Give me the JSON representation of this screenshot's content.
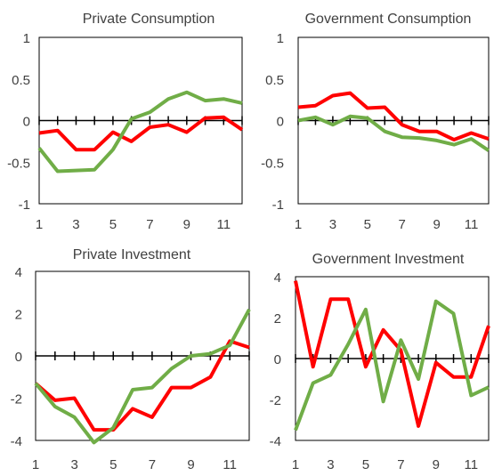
{
  "chart_data": [
    {
      "type": "line",
      "title": "Private Consumption",
      "x": [
        1,
        2,
        3,
        4,
        5,
        6,
        7,
        8,
        9,
        10,
        11,
        12
      ],
      "xticks": [
        1,
        3,
        5,
        7,
        9,
        11
      ],
      "yticks": [
        1,
        0.5,
        0,
        -0.5,
        -1
      ],
      "ylim": [
        -1,
        1
      ],
      "series": [
        {
          "color": "#ff0000",
          "values": [
            -0.15,
            -0.12,
            -0.35,
            -0.35,
            -0.14,
            -0.25,
            -0.08,
            -0.05,
            -0.14,
            0.03,
            0.04,
            -0.11
          ]
        },
        {
          "color": "#70ad47",
          "values": [
            -0.33,
            -0.61,
            -0.6,
            -0.59,
            -0.35,
            0.02,
            0.1,
            0.26,
            0.34,
            0.24,
            0.26,
            0.21
          ]
        }
      ]
    },
    {
      "type": "line",
      "title": "Government Consumption",
      "x": [
        1,
        2,
        3,
        4,
        5,
        6,
        7,
        8,
        9,
        10,
        11,
        12
      ],
      "xticks": [
        1,
        3,
        5,
        7,
        9,
        11
      ],
      "yticks": [
        1,
        0.5,
        0,
        -0.5,
        -1
      ],
      "ylim": [
        -1,
        1
      ],
      "series": [
        {
          "color": "#ff0000",
          "values": [
            0.16,
            0.18,
            0.3,
            0.33,
            0.15,
            0.16,
            -0.05,
            -0.13,
            -0.13,
            -0.23,
            -0.15,
            -0.22
          ]
        },
        {
          "color": "#70ad47",
          "values": [
            0.0,
            0.04,
            -0.05,
            0.05,
            0.03,
            -0.13,
            -0.2,
            -0.21,
            -0.24,
            -0.29,
            -0.22,
            -0.36
          ]
        }
      ]
    },
    {
      "type": "line",
      "title": "Private Investment",
      "x": [
        1,
        2,
        3,
        4,
        5,
        6,
        7,
        8,
        9,
        10,
        11,
        12
      ],
      "xticks": [
        1,
        3,
        5,
        7,
        9,
        11
      ],
      "yticks": [
        4,
        2,
        0,
        -2,
        -4
      ],
      "ylim": [
        -4,
        4
      ],
      "series": [
        {
          "color": "#ff0000",
          "values": [
            -1.3,
            -2.1,
            -2.0,
            -3.5,
            -3.5,
            -2.5,
            -2.9,
            -1.5,
            -1.5,
            -1.0,
            0.7,
            0.4
          ]
        },
        {
          "color": "#70ad47",
          "values": [
            -1.3,
            -2.4,
            -2.9,
            -4.1,
            -3.4,
            -1.6,
            -1.5,
            -0.6,
            0.0,
            0.1,
            0.5,
            2.2
          ]
        }
      ]
    },
    {
      "type": "line",
      "title": "Government Investment",
      "x": [
        1,
        2,
        3,
        4,
        5,
        6,
        7,
        8,
        9,
        10,
        11,
        12
      ],
      "xticks": [
        1,
        3,
        5,
        7,
        9,
        11
      ],
      "yticks": [
        4,
        2,
        0,
        -2,
        -4
      ],
      "ylim": [
        -4,
        4
      ],
      "series": [
        {
          "color": "#ff0000",
          "values": [
            3.8,
            -0.4,
            2.9,
            2.9,
            -0.4,
            1.4,
            0.4,
            -3.3,
            -0.2,
            -0.9,
            -0.9,
            1.6
          ]
        },
        {
          "color": "#70ad47",
          "values": [
            -3.5,
            -1.2,
            -0.8,
            0.7,
            2.4,
            -2.1,
            0.9,
            -1.0,
            2.8,
            2.2,
            -1.8,
            -1.4
          ]
        }
      ]
    }
  ]
}
